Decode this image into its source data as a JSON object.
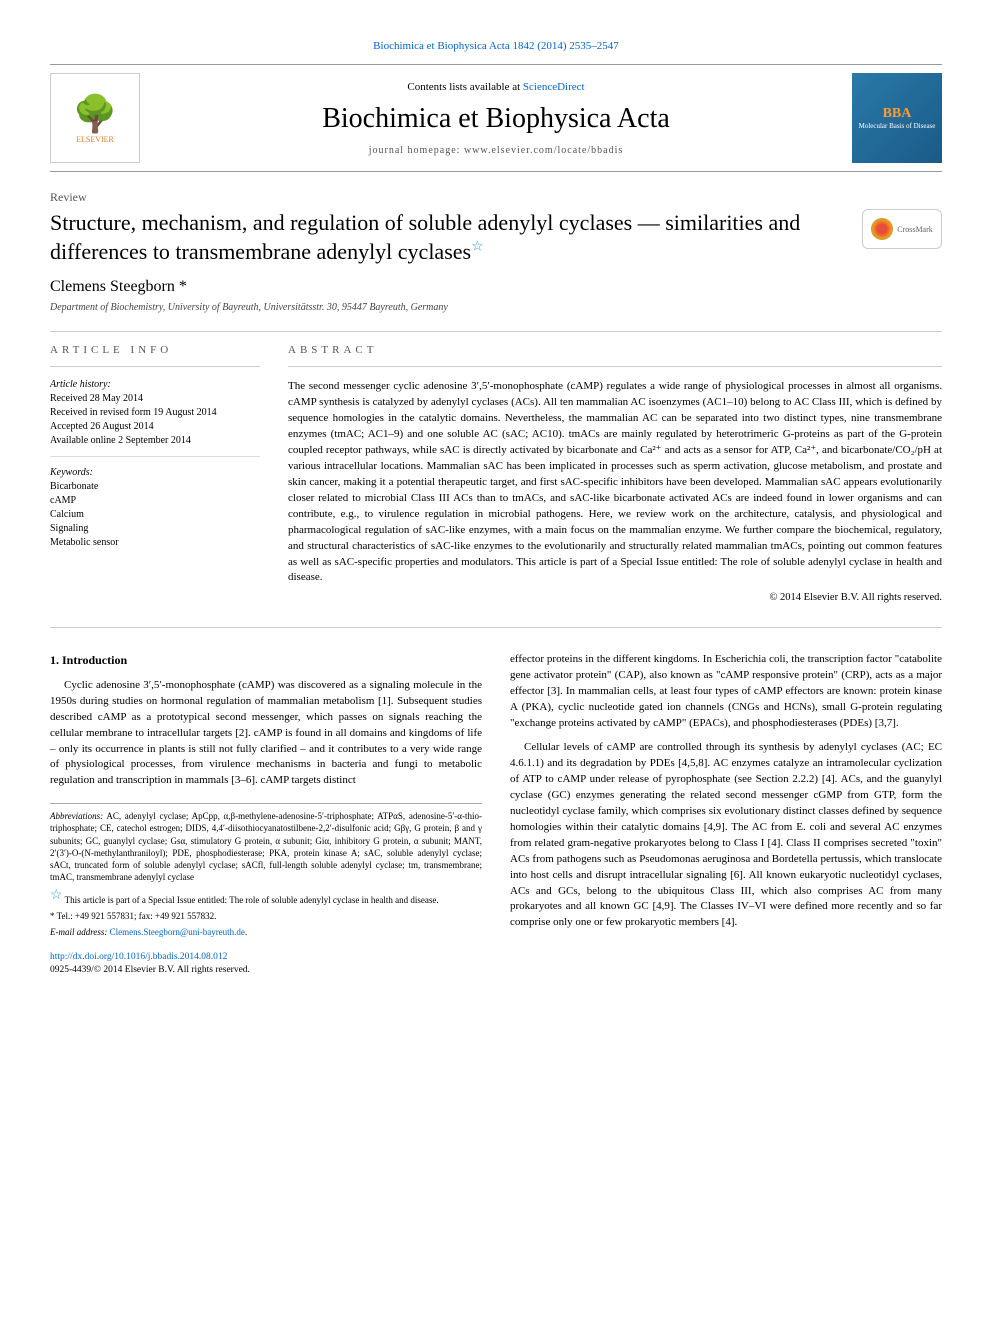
{
  "citation": "Biochimica et Biophysica Acta 1842 (2014) 2535–2547",
  "header": {
    "contents_prefix": "Contents lists available at ",
    "contents_link": "ScienceDirect",
    "journal_title": "Biochimica et Biophysica Acta",
    "homepage_label": "journal homepage: ",
    "homepage_url": "www.elsevier.com/locate/bbadis",
    "elsevier_label": "ELSEVIER",
    "bba_label": "BBA",
    "bba_sub": "Molecular Basis of Disease"
  },
  "article": {
    "type": "Review",
    "title": "Structure, mechanism, and regulation of soluble adenylyl cyclases — similarities and differences to transmembrane adenylyl cyclases",
    "crossmark_label": "CrossMark",
    "author": "Clemens Steegborn",
    "author_marker": "*",
    "affiliation": "Department of Biochemistry, University of Bayreuth, Universitätsstr. 30, 95447 Bayreuth, Germany"
  },
  "info": {
    "heading": "ARTICLE INFO",
    "history_label": "Article history:",
    "received": "Received 28 May 2014",
    "revised": "Received in revised form 19 August 2014",
    "accepted": "Accepted 26 August 2014",
    "online": "Available online 2 September 2014",
    "keywords_label": "Keywords:",
    "keywords": [
      "Bicarbonate",
      "cAMP",
      "Calcium",
      "Signaling",
      "Metabolic sensor"
    ]
  },
  "abstract": {
    "heading": "ABSTRACT",
    "text": "The second messenger cyclic adenosine 3′,5′-monophosphate (cAMP) regulates a wide range of physiological processes in almost all organisms. cAMP synthesis is catalyzed by adenylyl cyclases (ACs). All ten mammalian AC isoenzymes (AC1–10) belong to AC Class III, which is defined by sequence homologies in the catalytic domains. Nevertheless, the mammalian AC can be separated into two distinct types, nine transmembrane enzymes (tmAC; AC1–9) and one soluble AC (sAC; AC10). tmACs are mainly regulated by heterotrimeric G-proteins as part of the G-protein coupled receptor pathways, while sAC is directly activated by bicarbonate and Ca²⁺ and acts as a sensor for ATP, Ca²⁺, and bicarbonate/CO₂/pH at various intracellular locations. Mammalian sAC has been implicated in processes such as sperm activation, glucose metabolism, and prostate and skin cancer, making it a potential therapeutic target, and first sAC-specific inhibitors have been developed. Mammalian sAC appears evolutionarily closer related to microbial Class III ACs than to tmACs, and sAC-like bicarbonate activated ACs are indeed found in lower organisms and can contribute, e.g., to virulence regulation in microbial pathogens. Here, we review work on the architecture, catalysis, and physiological and pharmacological regulation of sAC-like enzymes, with a main focus on the mammalian enzyme. We further compare the biochemical, regulatory, and structural characteristics of sAC-like enzymes to the evolutionarily and structurally related mammalian tmACs, pointing out common features as well as sAC-specific properties and modulators. This article is part of a Special Issue entitled: The role of soluble adenylyl cyclase in health and disease.",
    "copyright": "© 2014 Elsevier B.V. All rights reserved."
  },
  "body": {
    "intro_heading": "1. Introduction",
    "col1_p1": "Cyclic adenosine 3′,5′-monophosphate (cAMP) was discovered as a signaling molecule in the 1950s during studies on hormonal regulation of mammalian metabolism [1]. Subsequent studies described cAMP as a prototypical second messenger, which passes on signals reaching the cellular membrane to intracellular targets [2]. cAMP is found in all domains and kingdoms of life – only its occurrence in plants is still not fully clarified – and it contributes to a very wide range of physiological processes, from virulence mechanisms in bacteria and fungi to metabolic regulation and transcription in mammals [3–6]. cAMP targets distinct",
    "col2_p1": "effector proteins in the different kingdoms. In Escherichia coli, the transcription factor \"catabolite gene activator protein\" (CAP), also known as \"cAMP responsive protein\" (CRP), acts as a major effector [3]. In mammalian cells, at least four types of cAMP effectors are known: protein kinase A (PKA), cyclic nucleotide gated ion channels (CNGs and HCNs), small G-protein regulating \"exchange proteins activated by cAMP\" (EPACs), and phosphodiesterases (PDEs) [3,7].",
    "col2_p2": "Cellular levels of cAMP are controlled through its synthesis by adenylyl cyclases (AC; EC 4.6.1.1) and its degradation by PDEs [4,5,8]. AC enzymes catalyze an intramolecular cyclization of ATP to cAMP under release of pyrophosphate (see Section 2.2.2) [4]. ACs, and the guanylyl cyclase (GC) enzymes generating the related second messenger cGMP from GTP, form the nucleotidyl cyclase family, which comprises six evolutionary distinct classes defined by sequence homologies within their catalytic domains [4,9]. The AC from E. coli and several AC enzymes from related gram-negative prokaryotes belong to Class I [4]. Class II comprises secreted \"toxin\" ACs from pathogens such as Pseudomonas aeruginosa and Bordetella pertussis, which translocate into host cells and disrupt intracellular signaling [6]. All known eukaryotic nucleotidyl cyclases, ACs and GCs, belong to the ubiquitous Class III, which also comprises AC from many prokaryotes and all known GC [4,9]. The Classes IV–VI were defined more recently and so far comprise only one or few prokaryotic members [4]."
  },
  "footnotes": {
    "abbrev_label": "Abbreviations:",
    "abbrev_text": " AC, adenylyl cyclase; ApCpp, α,β-methylene-adenosine-5′-triphosphate; ATPαS, adenosine-5′-α-thio-triphosphate; CE, catechol estrogen; DIDS, 4,4′-diisothiocyanatostilbene-2,2′-disulfonic acid; Gβγ, G protein, β and γ subunits; GC, guanylyl cyclase; Gsα, stimulatory G protein, α subunit; Giα, inhibitory G protein, α subunit; MANT, 2′(3′)-O-(N-methylanthraniloyl); PDE, phosphodiesterase; PKA, protein kinase A; sAC, soluble adenylyl cyclase; sACt, truncated form of soluble adenylyl cyclase; sACfl, full-length soluble adenylyl cyclase; tm, transmembrane; tmAC, transmembrane adenylyl cyclase",
    "special_issue": "This article is part of a Special Issue entitled: The role of soluble adenylyl cyclase in health and disease.",
    "corresp": "Tel.: +49 921 557831; fax: +49 921 557832.",
    "email_label": "E-mail address: ",
    "email": "Clemens.Steegborn@uni-bayreuth.de",
    "email_suffix": "."
  },
  "doi": {
    "url": "http://dx.doi.org/10.1016/j.bbadis.2014.08.012",
    "issn_line": "0925-4439/© 2014 Elsevier B.V. All rights reserved."
  },
  "colors": {
    "link": "#0066cc",
    "text": "#000000",
    "muted": "#555555",
    "border": "#cccccc",
    "bba_bg": "#2a7aa8",
    "bba_accent": "#ff9933"
  }
}
